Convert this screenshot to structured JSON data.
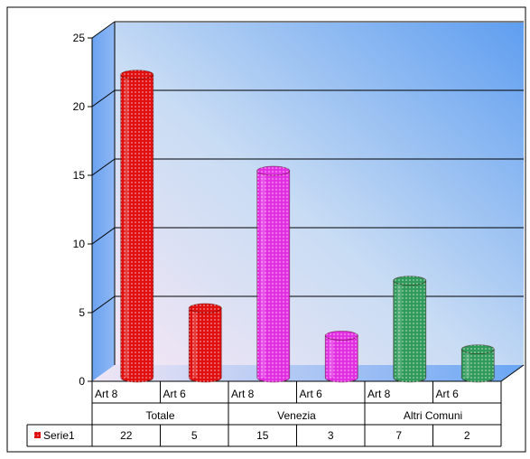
{
  "chart_data": {
    "type": "bar",
    "title": "",
    "xlabel": "",
    "ylabel": "",
    "ylim": [
      0,
      25
    ],
    "yticks": [
      "0",
      "5",
      "10",
      "15",
      "20",
      "25"
    ],
    "grid": true,
    "categories": [
      "Art 8",
      "Art 6",
      "Art 8",
      "Art 6",
      "Art 8",
      "Art 6"
    ],
    "groups": [
      "Totale",
      "Venezia",
      "Altri Comuni"
    ],
    "series": [
      {
        "name": "Serie1",
        "values": [
          22,
          5,
          15,
          3,
          7,
          2
        ]
      }
    ],
    "table_values": [
      "22",
      "5",
      "15",
      "3",
      "7",
      "2"
    ],
    "bar_colors": [
      "#e01010",
      "#e01010",
      "#e22fe2",
      "#e22fe2",
      "#2f9a5a",
      "#2f9a5a"
    ],
    "legend": {
      "marker_color": "#e01010",
      "placement": "data-table"
    }
  }
}
